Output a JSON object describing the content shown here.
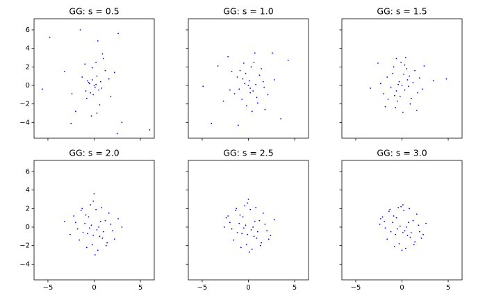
{
  "chart_data": [
    {
      "type": "scatter",
      "title": "GG: s = 0.5",
      "color": "#0000ff",
      "x": [
        -4.8,
        -1.5,
        2.6,
        6.0,
        2.5,
        -5.6,
        -2.5,
        0.4,
        3.0,
        -3.2,
        1.8,
        -1.0,
        0.9,
        -0.3,
        0.2,
        -0.6,
        0.5,
        -0.2,
        0.1,
        0.3,
        -0.4,
        0.7,
        -0.8,
        1.2,
        -1.3,
        0.0,
        0.6,
        -0.5,
        0.2,
        -0.1,
        1.6,
        -2.0,
        0.8,
        -0.9,
        2.2,
        -2.4,
        0.3,
        -0.2,
        1.0,
        -0.7
      ],
      "y": [
        5.2,
        6.0,
        5.6,
        -4.8,
        -5.2,
        -0.4,
        -4.1,
        4.8,
        -4.0,
        1.5,
        -1.2,
        2.3,
        3.4,
        -3.3,
        0.1,
        0.3,
        -0.5,
        0.6,
        -0.2,
        1.0,
        -0.8,
        0.4,
        -1.4,
        1.6,
        0.9,
        0.0,
        -2.1,
        0.2,
        2.5,
        -1.0,
        0.7,
        -2.8,
        -0.3,
        -0.6,
        1.4,
        -0.9,
        -3.0,
        1.9,
        2.9,
        0.5
      ],
      "xlim": [
        -6.5,
        6.5
      ],
      "ylim": [
        -5.7,
        7.2
      ],
      "xticks": [
        {
          "value": -5,
          "label": "−5"
        },
        0,
        5
      ],
      "yticks": [
        {
          "value": -4,
          "label": "−4"
        },
        {
          "value": -2,
          "label": "−2"
        },
        0,
        2,
        4,
        6
      ]
    },
    {
      "type": "scatter",
      "title": "GG: s = 1.0",
      "color": "#0000ff",
      "x": [
        -4.9,
        -4.0,
        3.5,
        4.3,
        -3.3,
        -2.2,
        2.6,
        1.8,
        -1.1,
        0.7,
        -0.4,
        0.2,
        0.0,
        -0.6,
        0.5,
        1.2,
        -1.5,
        0.9,
        -0.9,
        0.3,
        -0.2,
        1.6,
        -2.0,
        2.1,
        -0.3,
        0.6,
        -1.2,
        1.0,
        -0.7,
        0.1,
        2.8,
        -2.7,
        1.4,
        -1.8,
        0.4,
        -0.5,
        0.8,
        -1.0,
        0.2,
        1.7
      ],
      "y": [
        -0.1,
        -4.1,
        -3.6,
        2.7,
        2.1,
        3.1,
        3.5,
        -2.6,
        -4.3,
        3.5,
        0.2,
        -0.3,
        0.0,
        0.7,
        -0.6,
        1.1,
        -0.9,
        -1.3,
        1.6,
        2.0,
        -2.2,
        0.4,
        -0.5,
        -1.0,
        1.3,
        2.5,
        0.9,
        -1.9,
        -1.5,
        0.5,
        0.6,
        -1.7,
        1.8,
        1.5,
        -2.8,
        2.4,
        0.1,
        -0.4,
        -0.8,
        -0.2
      ],
      "xlim": [
        -6.5,
        6.5
      ],
      "ylim": [
        -5.7,
        7.2
      ],
      "xticks": [
        {
          "value": -5,
          "label": "−5"
        },
        0,
        5
      ],
      "yticks": [
        {
          "value": -4,
          "label": "−4"
        },
        {
          "value": -2,
          "label": "−2"
        },
        0,
        2,
        4,
        6
      ]
    },
    {
      "type": "scatter",
      "title": "GG: s = 1.5",
      "color": "#0000ff",
      "x": [
        -3.4,
        3.4,
        4.8,
        -2.6,
        2.4,
        -0.6,
        0.4,
        1.6,
        -1.8,
        0.0,
        -0.3,
        0.3,
        0.8,
        -0.8,
        1.2,
        -1.2,
        0.5,
        -0.5,
        1.9,
        -2.0,
        0.1,
        -0.1,
        1.0,
        -1.0,
        0.6,
        -0.6,
        2.2,
        -2.3,
        1.4,
        -1.5,
        0.2,
        -0.2,
        0.9,
        -0.9,
        1.7,
        -1.6,
        0.7,
        -0.4,
        0.3,
        -0.7
      ],
      "y": [
        -0.3,
        0.5,
        0.7,
        2.4,
        2.1,
        2.9,
        3.0,
        -2.7,
        -2.3,
        0.0,
        0.4,
        -0.5,
        1.0,
        -1.1,
        0.3,
        -0.2,
        1.8,
        -1.7,
        0.8,
        -0.9,
        -2.9,
        2.5,
        -1.4,
        1.3,
        0.6,
        -0.6,
        -0.4,
        0.2,
        1.6,
        -1.5,
        1.2,
        -1.2,
        -2.0,
        2.0,
        -0.8,
        0.9,
        -0.1,
        0.1,
        2.2,
        -2.4
      ],
      "xlim": [
        -6.5,
        6.5
      ],
      "ylim": [
        -5.7,
        7.2
      ],
      "xticks": [
        {
          "value": -5,
          "label": "−5"
        },
        0,
        5
      ],
      "yticks": [
        {
          "value": -4,
          "label": "−4"
        },
        {
          "value": -2,
          "label": "−2"
        },
        0,
        2,
        4,
        6
      ]
    },
    {
      "type": "scatter",
      "title": "GG: s = 2.0",
      "color": "#0000ff",
      "x": [
        -3.2,
        3.0,
        0.0,
        -0.3,
        0.3,
        -0.6,
        0.6,
        -1.0,
        1.0,
        -1.4,
        1.4,
        -1.8,
        1.8,
        -2.2,
        2.2,
        -2.6,
        2.6,
        0.1,
        -0.1,
        0.8,
        -0.8,
        1.2,
        -1.2,
        0.4,
        -0.4,
        1.6,
        -1.6,
        0.5,
        -0.5,
        2.0,
        -2.0,
        0.2,
        -0.2,
        0.9,
        -0.9,
        1.3,
        -1.3,
        0.7,
        -0.7,
        -0.1
      ],
      "y": [
        0.6,
        0.0,
        3.6,
        0.2,
        -0.3,
        1.1,
        -1.0,
        0.4,
        -0.5,
        1.8,
        -1.7,
        -0.2,
        0.3,
        1.2,
        -1.3,
        -0.8,
        0.9,
        -3.0,
        2.8,
        2.1,
        -2.2,
        0.7,
        -0.6,
        -2.5,
        2.4,
        1.5,
        -1.4,
        0.0,
        -0.1,
        -0.4,
        0.5,
        1.9,
        -1.9,
        -1.2,
        1.3,
        -2.0,
        2.0,
        0.6,
        -0.7,
        -0.9
      ],
      "xlim": [
        -6.5,
        6.5
      ],
      "ylim": [
        -5.7,
        7.2
      ],
      "xticks": [
        {
          "value": -5,
          "label": "−5"
        },
        0,
        5
      ],
      "yticks": [
        {
          "value": -4,
          "label": "−4"
        },
        {
          "value": -2,
          "label": "−2"
        },
        0,
        2,
        4,
        6
      ]
    },
    {
      "type": "scatter",
      "title": "GG: s = 2.5",
      "color": "#0000ff",
      "x": [
        -2.6,
        2.8,
        0.0,
        -0.3,
        0.3,
        -0.6,
        0.6,
        -1.0,
        1.0,
        -1.4,
        1.4,
        -1.8,
        1.8,
        -2.2,
        2.2,
        0.1,
        -0.1,
        0.8,
        -0.8,
        1.2,
        -1.2,
        0.4,
        -0.4,
        1.6,
        -1.6,
        0.5,
        -0.5,
        2.0,
        -2.0,
        0.2,
        -0.2,
        0.9,
        -0.9,
        1.3,
        -1.3,
        0.7,
        -0.7,
        2.4,
        -2.4,
        -0.1
      ],
      "y": [
        0.0,
        0.8,
        3.0,
        0.2,
        -0.3,
        1.1,
        -1.0,
        0.4,
        -0.5,
        1.8,
        -1.7,
        -0.2,
        0.3,
        1.2,
        -1.3,
        -2.7,
        2.6,
        2.1,
        -2.2,
        0.7,
        -0.6,
        -2.4,
        2.3,
        1.5,
        -1.4,
        0.0,
        -0.1,
        -0.4,
        0.5,
        1.9,
        -1.9,
        -1.2,
        1.3,
        -2.0,
        2.0,
        0.6,
        -0.7,
        -0.9,
        1.0,
        -0.8
      ],
      "xlim": [
        -6.5,
        6.5
      ],
      "ylim": [
        -5.7,
        7.2
      ],
      "xticks": [
        {
          "value": -5,
          "label": "−5"
        },
        0,
        5
      ],
      "yticks": [
        {
          "value": -4,
          "label": "−4"
        },
        {
          "value": -2,
          "label": "−2"
        },
        0,
        2,
        4,
        6
      ]
    },
    {
      "type": "scatter",
      "title": "GG: s = 3.0",
      "color": "#0000ff",
      "x": [
        -2.4,
        2.6,
        0.1,
        -0.2,
        0.3,
        -0.6,
        0.6,
        -1.0,
        1.0,
        -1.4,
        1.4,
        -1.8,
        1.8,
        -2.1,
        2.1,
        0.0,
        -0.1,
        0.8,
        -0.8,
        1.2,
        -1.2,
        0.4,
        -0.4,
        1.6,
        -1.6,
        0.5,
        -0.5,
        1.9,
        -1.9,
        0.2,
        -0.3,
        0.9,
        -0.9,
        1.3,
        -1.3,
        0.7,
        -0.7,
        2.3,
        -2.3,
        0.1
      ],
      "y": [
        0.3,
        0.4,
        2.4,
        0.1,
        -0.4,
        1.0,
        -0.9,
        0.5,
        -0.6,
        1.7,
        -1.6,
        -0.1,
        0.2,
        1.1,
        -1.2,
        -2.5,
        2.2,
        2.0,
        -2.1,
        0.7,
        -0.5,
        -2.3,
        2.1,
        1.4,
        -1.3,
        0.0,
        -0.2,
        -0.5,
        0.6,
        1.8,
        -1.8,
        -1.1,
        1.2,
        -1.9,
        1.9,
        0.5,
        -0.8,
        -0.8,
        0.9,
        -0.6
      ],
      "xlim": [
        -6.5,
        6.5
      ],
      "ylim": [
        -5.7,
        7.2
      ],
      "xticks": [
        {
          "value": -5,
          "label": "−5"
        },
        0,
        5
      ],
      "yticks": [
        {
          "value": -4,
          "label": "−4"
        },
        {
          "value": -2,
          "label": "−2"
        },
        0,
        2,
        4,
        6
      ]
    }
  ]
}
